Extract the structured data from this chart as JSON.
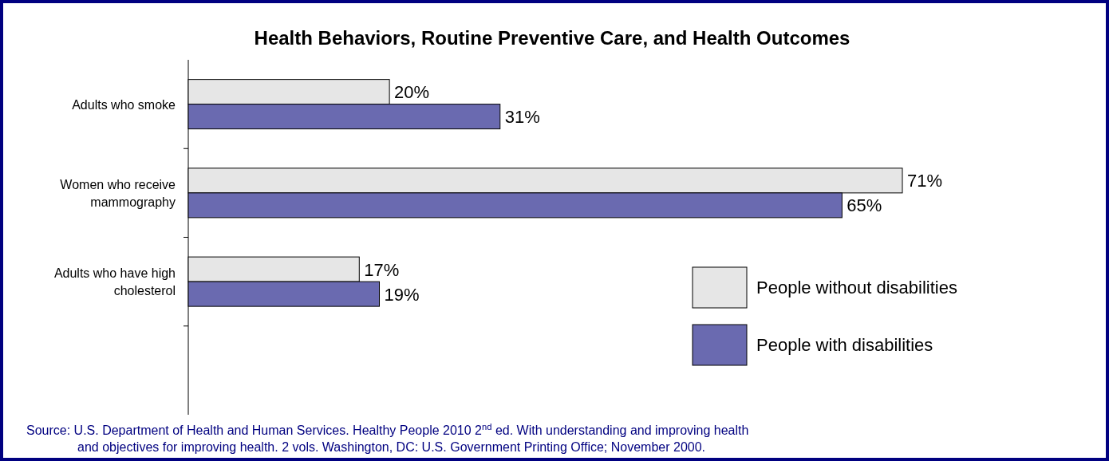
{
  "chart_data": {
    "type": "bar",
    "orientation": "horizontal",
    "title": "Health Behaviors, Routine Preventive Care, and Health Outcomes",
    "categories": [
      "Adults who smoke",
      "Women who receive mammography",
      "Adults who have high cholesterol",
      null
    ],
    "series": [
      {
        "name": "People without disabilities",
        "color": "#e6e6e6",
        "values": [
          20,
          71,
          17,
          null
        ],
        "value_labels": [
          "20%",
          "71%",
          "17%",
          null
        ]
      },
      {
        "name": "People with disabilities",
        "color": "#6a6ab0",
        "values": [
          31,
          65,
          19,
          null
        ],
        "value_labels": [
          "31%",
          "65%",
          "19%",
          null
        ]
      }
    ],
    "legend": "bottom right",
    "annotations": [
      "Source: U.S. Department of Health and Human Services. Healthy People 2010 2$^{nd}$ ed. With understanding and improving health and objectives for improving health. 2 vols. Washington, DC: U.S. Government Printing Office; November 2000."
    ]
  }
}
